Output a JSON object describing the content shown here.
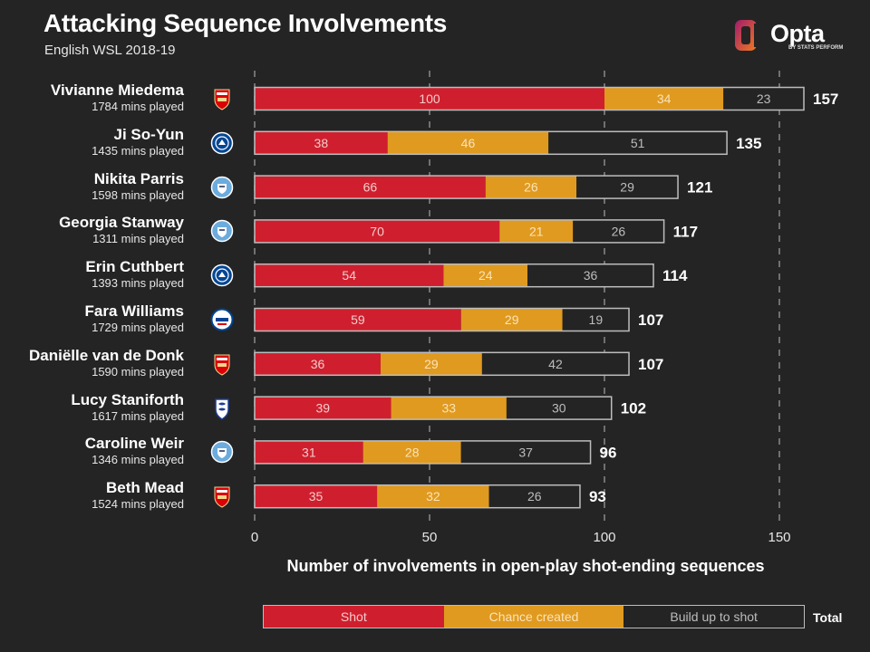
{
  "header": {
    "title": "Attacking Sequence Involvements",
    "subtitle": "English WSL 2018-19"
  },
  "logo": {
    "word": "Opta",
    "sub": "BY STATS PERFORM"
  },
  "colors": {
    "background": "#242424",
    "shot": "#cf1f2e",
    "chance": "#e09a1f",
    "buildup": "#242424",
    "outline": "#bdbdbd",
    "grid": "#8a8a8a",
    "arsenal": "#db0007",
    "chelsea": "#034694",
    "man_city": "#6cabdd",
    "reading": "#004494",
    "birmingham": "#1c3f94"
  },
  "chart_data": {
    "type": "bar",
    "orientation": "horizontal",
    "stacked": true,
    "title": "Attacking Sequence Involvements",
    "subtitle": "English WSL 2018-19",
    "xlabel": "Number of involvements in open-play shot-ending sequences",
    "ylabel": "",
    "xlim": [
      0,
      157
    ],
    "xticks": [
      0,
      50,
      100,
      150
    ],
    "grid": "vertical dashed",
    "legend_position": "bottom",
    "series_names": [
      "Shot",
      "Chance created",
      "Build up to shot"
    ],
    "total_label": "Total",
    "players": [
      {
        "name": "Vivianne Miedema",
        "mins": "1784 mins played",
        "club": "arsenal",
        "shot": 100,
        "chance": 34,
        "buildup": 23,
        "total": 157
      },
      {
        "name": "Ji So-Yun",
        "mins": "1435 mins played",
        "club": "chelsea",
        "shot": 38,
        "chance": 46,
        "buildup": 51,
        "total": 135
      },
      {
        "name": "Nikita Parris",
        "mins": "1598 mins played",
        "club": "man_city",
        "shot": 66,
        "chance": 26,
        "buildup": 29,
        "total": 121
      },
      {
        "name": "Georgia Stanway",
        "mins": "1311 mins played",
        "club": "man_city",
        "shot": 70,
        "chance": 21,
        "buildup": 26,
        "total": 117
      },
      {
        "name": "Erin Cuthbert",
        "mins": "1393 mins played",
        "club": "chelsea",
        "shot": 54,
        "chance": 24,
        "buildup": 36,
        "total": 114
      },
      {
        "name": "Fara Williams",
        "mins": "1729 mins played",
        "club": "reading",
        "shot": 59,
        "chance": 29,
        "buildup": 19,
        "total": 107
      },
      {
        "name": "Daniëlle van de Donk",
        "mins": "1590 mins played",
        "club": "arsenal",
        "shot": 36,
        "chance": 29,
        "buildup": 42,
        "total": 107
      },
      {
        "name": "Lucy Staniforth",
        "mins": "1617 mins played",
        "club": "birmingham",
        "shot": 39,
        "chance": 33,
        "buildup": 30,
        "total": 102
      },
      {
        "name": "Caroline Weir",
        "mins": "1346 mins played",
        "club": "man_city",
        "shot": 31,
        "chance": 28,
        "buildup": 37,
        "total": 96
      },
      {
        "name": "Beth Mead",
        "mins": "1524 mins played",
        "club": "arsenal",
        "shot": 35,
        "chance": 32,
        "buildup": 26,
        "total": 93
      }
    ]
  }
}
